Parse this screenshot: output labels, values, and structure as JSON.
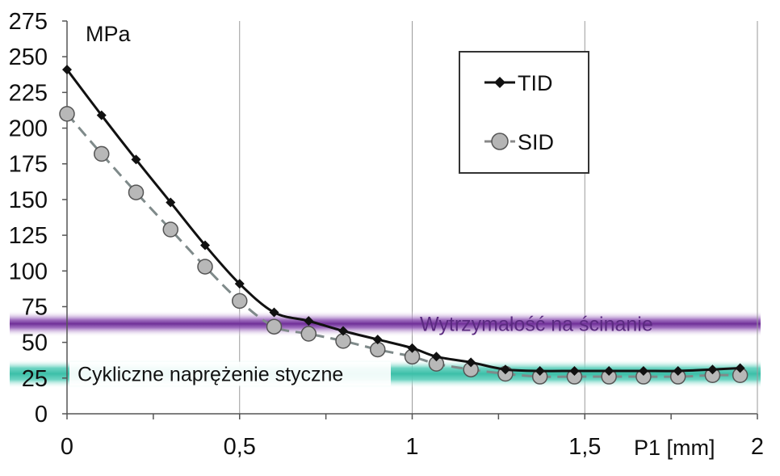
{
  "chart_data": {
    "type": "line",
    "ylabel": "MPa",
    "xlabel": "P1 [mm]",
    "xlim": [
      0,
      2
    ],
    "ylim": [
      0,
      275
    ],
    "x_ticks": [
      {
        "value": 0,
        "label": "0"
      },
      {
        "value": 0.5,
        "label": "0,5"
      },
      {
        "value": 1,
        "label": "1"
      },
      {
        "value": 1.5,
        "label": "1,5"
      },
      {
        "value": 2,
        "label": "2"
      }
    ],
    "y_ticks": [
      {
        "value": 0,
        "label": "0"
      },
      {
        "value": 25,
        "label": "25"
      },
      {
        "value": 50,
        "label": "50"
      },
      {
        "value": 75,
        "label": "75"
      },
      {
        "value": 100,
        "label": "100"
      },
      {
        "value": 125,
        "label": "125"
      },
      {
        "value": 150,
        "label": "150"
      },
      {
        "value": 175,
        "label": "175"
      },
      {
        "value": 200,
        "label": "200"
      },
      {
        "value": 225,
        "label": "225"
      },
      {
        "value": 250,
        "label": "250"
      },
      {
        "value": 275,
        "label": "275"
      }
    ],
    "grid": "vertical lines at 0.5 mm",
    "legend_position": "top-right",
    "series": [
      {
        "name": "TID",
        "color": "#111111",
        "marker": "diamond",
        "line_style": "solid",
        "x": [
          0,
          0.1,
          0.2,
          0.3,
          0.4,
          0.5,
          0.6,
          0.7,
          0.8,
          0.9,
          1.0,
          1.07,
          1.17,
          1.27,
          1.37,
          1.47,
          1.57,
          1.67,
          1.77,
          1.87,
          1.95
        ],
        "y": [
          241,
          209,
          178,
          148,
          118,
          91,
          71,
          65,
          58,
          52,
          46,
          40,
          36,
          31,
          30,
          30,
          30,
          30,
          30,
          31,
          32
        ]
      },
      {
        "name": "SID",
        "color": "#9a9a9a",
        "marker": "circle",
        "line_style": "dashed",
        "x": [
          0,
          0.1,
          0.2,
          0.3,
          0.4,
          0.5,
          0.6,
          0.7,
          0.8,
          0.9,
          1.0,
          1.07,
          1.17,
          1.27,
          1.37,
          1.47,
          1.57,
          1.67,
          1.77,
          1.87,
          1.95
        ],
        "y": [
          210,
          182,
          155,
          129,
          103,
          79,
          61,
          56,
          51,
          45,
          40,
          35,
          31,
          28,
          26,
          26,
          26,
          26,
          26,
          27,
          27
        ]
      }
    ],
    "bands": [
      {
        "label": "Wytrzymałość na ścinanie",
        "y_range": [
          59,
          67
        ],
        "color": "#7b3fa0"
      },
      {
        "label": "Cykliczne naprężenie styczne",
        "y_range": [
          23,
          33
        ],
        "color": "#3cbfa8"
      }
    ]
  }
}
